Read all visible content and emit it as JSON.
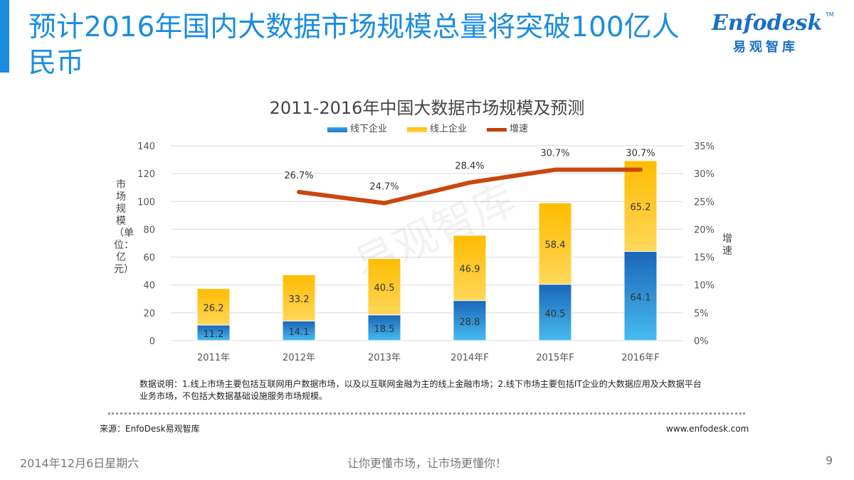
{
  "slide": {
    "title": "预计2016年国内大数据市场规模总量将突破100亿人民币",
    "logo_word": "Enfodesk",
    "logo_tm": "TM",
    "logo_cn": "易观智库",
    "note": "数据说明：1.线上市场主要包括互联网用户数据市场，以及以互联网金融为主的线上金融市场；2.线下市场主要包括IT企业的大数据应用及大数据平台业务市场，不包括大数据基础设施服务市场规模。",
    "source": "来源：EnfoDesk易观智库",
    "website": "www.enfodesk.com",
    "footer_date": "2014年12月6日星期六",
    "footer_slogan": "让你更懂市场，让市场更懂你！",
    "page_number": "9",
    "watermark": "易观智库"
  },
  "chart_data": {
    "type": "bar",
    "stacked": true,
    "title": "2011-2016年中国大数据市场规模及预测",
    "ylabel": "市场规模（单位：亿元）",
    "y2label": "增速",
    "categories": [
      "2011年",
      "2012年",
      "2013年",
      "2014年F",
      "2015年F",
      "2016年F"
    ],
    "ylim": [
      0,
      140
    ],
    "yticks": [
      0,
      20,
      40,
      60,
      80,
      100,
      120,
      140
    ],
    "y2lim": [
      0,
      35
    ],
    "y2ticks": [
      "0%",
      "5%",
      "10%",
      "15%",
      "20%",
      "25%",
      "30%",
      "35%"
    ],
    "series": [
      {
        "name": "线下企业",
        "type": "bar",
        "color": "#1f78c8",
        "values": [
          11.2,
          14.1,
          18.5,
          28.8,
          40.5,
          64.1
        ],
        "labels": [
          "11.2",
          "14.1",
          "18.5",
          "28.8",
          "40.5",
          "64.1"
        ]
      },
      {
        "name": "线上企业",
        "type": "bar",
        "color": "#ffbf00",
        "values": [
          26.2,
          33.2,
          40.5,
          46.9,
          58.4,
          65.2
        ],
        "labels": [
          "26.2",
          "33.2",
          "40.5",
          "46.9",
          "58.4",
          "65.2"
        ]
      },
      {
        "name": "增速",
        "type": "line",
        "axis": "right",
        "color": "#c0440f",
        "values": [
          null,
          26.7,
          24.7,
          28.4,
          30.7,
          30.7
        ],
        "labels": [
          "",
          "26.7%",
          "24.7%",
          "28.4%",
          "30.7%",
          "30.7%"
        ]
      }
    ],
    "legend_position": "top",
    "grid": "horizontal"
  }
}
